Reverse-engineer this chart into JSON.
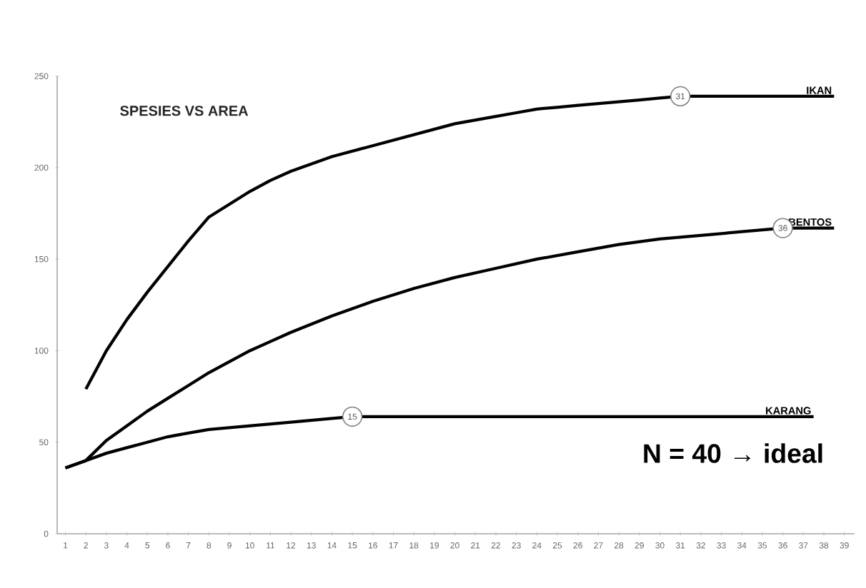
{
  "chart_data": {
    "type": "line",
    "title": "SPESIES VS AREA",
    "series": [
      {
        "name": "IKAN",
        "color": "#000000",
        "x": [
          2,
          3,
          4,
          5,
          6,
          7,
          8,
          9,
          10,
          11,
          12,
          13,
          14,
          15,
          16,
          17,
          18,
          19,
          20,
          21,
          22,
          23,
          24,
          25,
          26,
          27,
          28,
          29,
          30,
          31,
          38.5
        ],
        "values": [
          79,
          100,
          117,
          132,
          146,
          160,
          173,
          180,
          187,
          193,
          198,
          202,
          206,
          209,
          212,
          215,
          218,
          221,
          224,
          226,
          228,
          230,
          232,
          233,
          234,
          235,
          236,
          237,
          238,
          239,
          239
        ]
      },
      {
        "name": "BENTOS",
        "color": "#000000",
        "x": [
          1,
          2,
          3,
          4,
          5,
          6,
          7,
          8,
          9,
          10,
          11,
          12,
          14,
          16,
          18,
          20,
          22,
          24,
          26,
          28,
          30,
          32,
          34,
          36,
          38.5
        ],
        "values": [
          36,
          40,
          51,
          59,
          67,
          74,
          81,
          88,
          94,
          100,
          105,
          110,
          119,
          127,
          134,
          140,
          145,
          150,
          154,
          158,
          161,
          163,
          165,
          167,
          167
        ]
      },
      {
        "name": "KARANG",
        "color": "#000000",
        "x": [
          1,
          2,
          3,
          4,
          5,
          6,
          7,
          8,
          10,
          12,
          14,
          15,
          37.5
        ],
        "values": [
          36,
          40,
          44,
          47,
          50,
          53,
          55,
          57,
          59,
          61,
          63,
          64,
          64
        ]
      }
    ],
    "xlim": [
      0.6,
      39.5
    ],
    "xticks": [
      1,
      2,
      3,
      4,
      5,
      6,
      7,
      8,
      9,
      10,
      11,
      12,
      13,
      14,
      15,
      16,
      17,
      18,
      19,
      20,
      21,
      22,
      23,
      24,
      25,
      26,
      27,
      28,
      29,
      30,
      31,
      32,
      33,
      34,
      35,
      36,
      37,
      38,
      39
    ],
    "ylim": [
      0,
      250
    ],
    "yticks": [
      0,
      50,
      100,
      150,
      200,
      250
    ],
    "annotations": [
      {
        "text": "31",
        "x": 31,
        "y": 239
      },
      {
        "text": "36",
        "x": 36,
        "y": 167
      },
      {
        "text": "15",
        "x": 15,
        "y": 64
      },
      "N = 40 → ideal"
    ]
  }
}
